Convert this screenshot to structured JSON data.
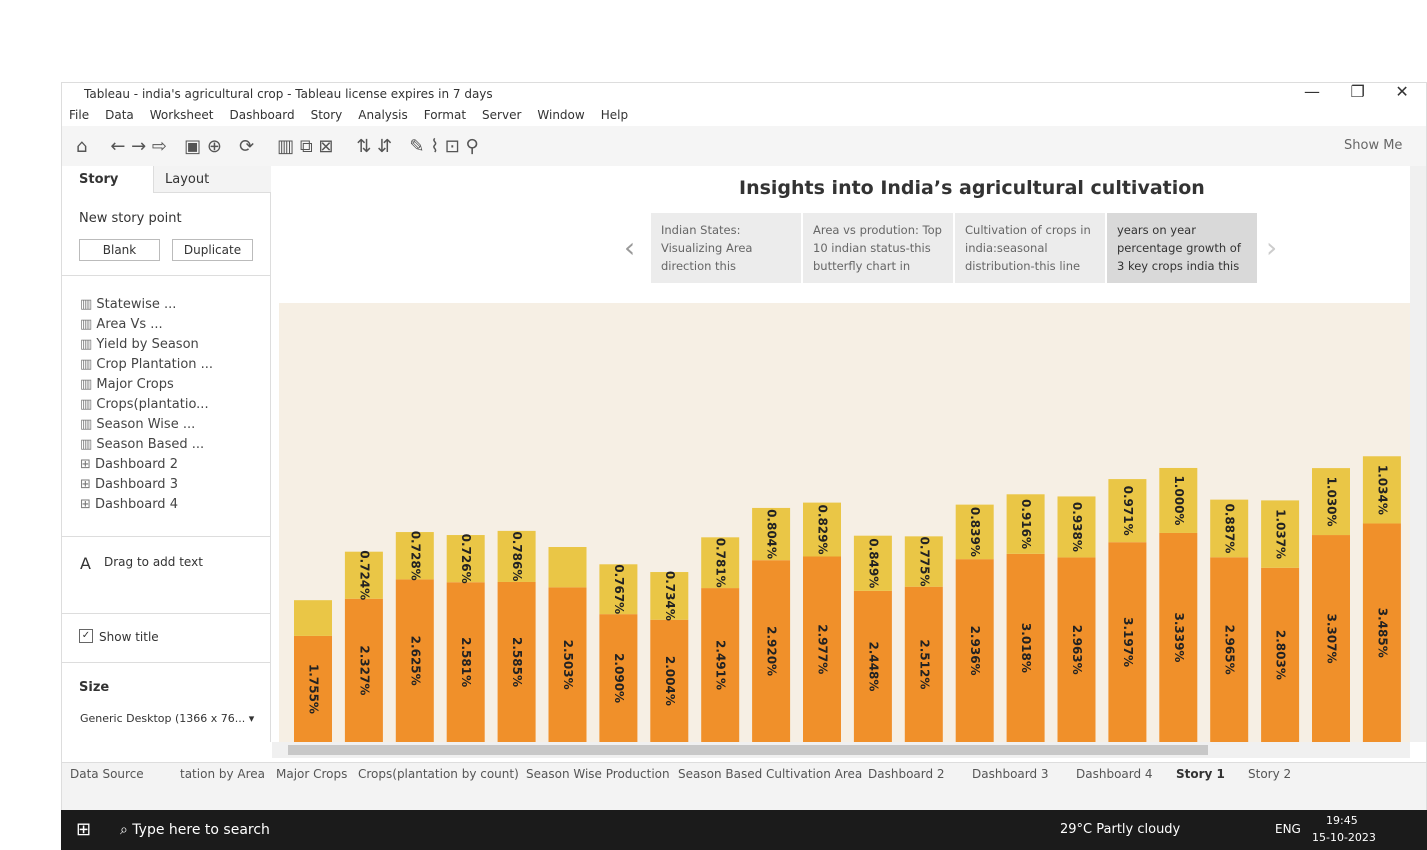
{
  "window": {
    "title": "Tableau - india's agricultural crop - Tableau license expires in 7 days"
  },
  "menu": [
    "File",
    "Data",
    "Worksheet",
    "Dashboard",
    "Story",
    "Analysis",
    "Format",
    "Server",
    "Window",
    "Help"
  ],
  "toolbar": {
    "show_me": "Show Me"
  },
  "sidebar": {
    "tabs": [
      "Story",
      "Layout"
    ],
    "new_story_point": "New story point",
    "buttons": [
      "Blank",
      "Duplicate"
    ],
    "sheets": [
      "Statewise ...",
      "Area Vs ...",
      "Yield by Season",
      "Crop Plantation ...",
      "Major Crops",
      "Crops(plantatio...",
      "Season Wise ...",
      "Season Based ...",
      "Dashboard 2",
      "Dashboard 3",
      "Dashboard 4"
    ],
    "drag_text": "Drag to add text",
    "show_title": "Show title",
    "size_label": "Size",
    "size_value": "Generic Desktop (1366 x 76..."
  },
  "story": {
    "title": "Insights into India’s agricultural cultivation",
    "points": [
      "Indian States: Visualizing Area direction this",
      "Area vs prodution: Top 10 indian status-this butterfly chart in",
      "Cultivation of crops in india:seasonal distribution-this line",
      "years on year percentage growth of 3 key crops india this"
    ]
  },
  "chart_data": {
    "type": "bar",
    "stacked": true,
    "series": [
      {
        "color": "#f0902a",
        "values": [
          1.755,
          2.327,
          2.625,
          2.581,
          2.585,
          2.503,
          2.09,
          2.004,
          2.491,
          2.92,
          2.977,
          2.448,
          2.512,
          2.936,
          3.018,
          2.963,
          3.197,
          3.339,
          2.965,
          2.803,
          3.307,
          3.485
        ],
        "value_labels": [
          "1.755%",
          "2.327%",
          "2.625%",
          "2.581%",
          "2.585%",
          "2.503%",
          "2.090%",
          "2.004%",
          "2.491%",
          "2.920%",
          "2.977%",
          "2.448%",
          "2.512%",
          "2.936%",
          "3.018%",
          "2.963%",
          "3.197%",
          "3.339%",
          "2.965%",
          "2.803%",
          "3.307%",
          "3.485%"
        ]
      },
      {
        "color": "#eac646",
        "values": [
          0.55,
          0.724,
          0.728,
          0.726,
          0.786,
          0.62,
          0.767,
          0.734,
          0.781,
          0.804,
          0.829,
          0.849,
          0.775,
          0.839,
          0.916,
          0.938,
          0.971,
          1.0,
          0.887,
          1.037,
          1.03,
          1.034
        ],
        "value_labels": [
          null,
          "0.724%",
          "0.728%",
          "0.726%",
          "0.786%",
          null,
          "0.767%",
          "0.734%",
          "0.781%",
          "0.804%",
          "0.829%",
          "0.849%",
          "0.775%",
          "0.839%",
          "0.916%",
          "0.938%",
          "0.971%",
          "1.000%",
          "0.887%",
          "1.037%",
          "1.030%",
          "1.034%"
        ]
      }
    ]
  },
  "tabs": [
    "Data Source",
    "tation by Area",
    "Major Crops",
    "Crops(plantation by count)",
    "Season Wise Production",
    "Season Based Cultivation Area",
    "Dashboard 2",
    "Dashboard 3",
    "Dashboard 4",
    "Story 1",
    "Story 2"
  ],
  "taskbar": {
    "search": "Type here to search",
    "weather": "29°C  Partly cloudy",
    "lang": "ENG",
    "time": "19:45",
    "date": "15-10-2023"
  }
}
